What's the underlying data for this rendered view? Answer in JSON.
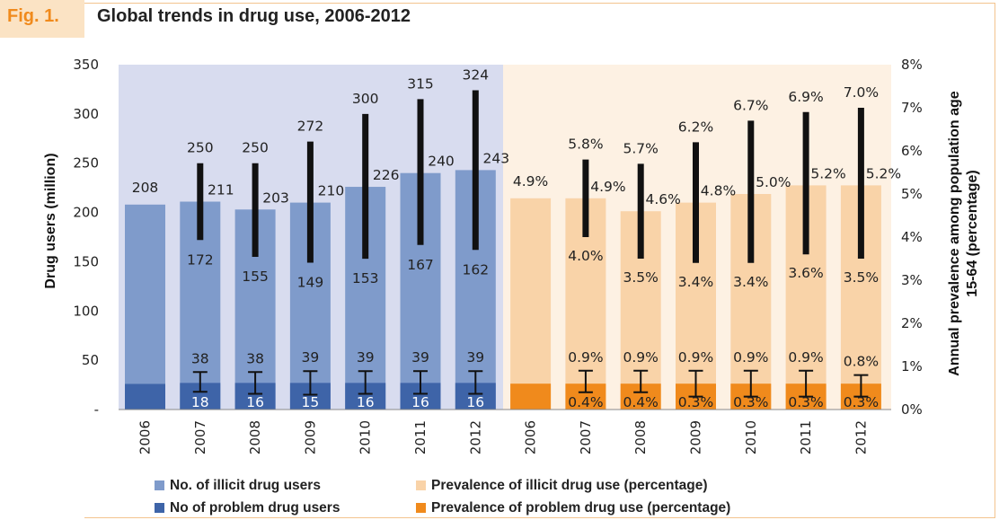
{
  "header": {
    "fig_label": "Fig. 1.",
    "title": "Global trends in drug use, 2006-2012"
  },
  "chart_data": {
    "type": "bar",
    "title": "Global trends in drug use, 2006-2012",
    "left_axis": {
      "label": "Drug users (million)",
      "ylim": [
        0,
        350
      ],
      "ticks": [
        "-",
        "50",
        "100",
        "150",
        "200",
        "250",
        "300",
        "350"
      ]
    },
    "right_axis": {
      "label_line1": "Annual prevalence among population age",
      "label_line2": "15-64 (percentage)",
      "ylim": [
        0,
        8
      ],
      "ticks": [
        "0%",
        "1%",
        "2%",
        "3%",
        "4%",
        "5%",
        "6%",
        "7%",
        "8%"
      ]
    },
    "categories": [
      "2006",
      "2007",
      "2008",
      "2009",
      "2010",
      "2011",
      "2012",
      "2006",
      "2007",
      "2008",
      "2009",
      "2010",
      "2011",
      "2012"
    ],
    "users": {
      "years": [
        "2006",
        "2007",
        "2008",
        "2009",
        "2010",
        "2011",
        "2012"
      ],
      "illicit": {
        "value": [
          208,
          211,
          203,
          210,
          226,
          240,
          243
        ],
        "low": [
          null,
          172,
          155,
          149,
          153,
          167,
          162
        ],
        "high": [
          null,
          250,
          250,
          272,
          300,
          315,
          324
        ]
      },
      "problem": {
        "value": [
          26,
          27,
          27,
          27,
          27,
          27,
          27
        ],
        "low": [
          null,
          18,
          16,
          15,
          16,
          16,
          16
        ],
        "high": [
          null,
          38,
          38,
          39,
          39,
          39,
          39
        ]
      }
    },
    "prevalence": {
      "years": [
        "2006",
        "2007",
        "2008",
        "2009",
        "2010",
        "2011",
        "2012"
      ],
      "illicit": {
        "value": [
          4.9,
          4.9,
          4.6,
          4.8,
          5.0,
          5.2,
          5.2
        ],
        "labels": [
          "4.9%",
          "4.9%",
          "4.6%",
          "4.8%",
          "5.0%",
          "5.2%",
          "5.2%"
        ],
        "low": [
          null,
          4.0,
          3.5,
          3.4,
          3.4,
          3.6,
          3.5
        ],
        "low_labels": [
          "",
          "4.0%",
          "3.5%",
          "3.4%",
          "3.4%",
          "3.6%",
          "3.5%"
        ],
        "high": [
          null,
          5.8,
          5.7,
          6.2,
          6.7,
          6.9,
          7.0
        ],
        "high_labels": [
          "",
          "5.8%",
          "5.7%",
          "6.2%",
          "6.7%",
          "6.9%",
          "7.0%"
        ]
      },
      "problem": {
        "value": [
          0.6,
          0.6,
          0.6,
          0.6,
          0.6,
          0.6,
          0.6
        ],
        "low": [
          null,
          0.4,
          0.4,
          0.3,
          0.3,
          0.3,
          0.3
        ],
        "low_labels": [
          "",
          "0.4%",
          "0.4%",
          "0.3%",
          "0.3%",
          "0.3%",
          "0.3%"
        ],
        "high": [
          null,
          0.9,
          0.9,
          0.9,
          0.9,
          0.9,
          0.8
        ],
        "high_labels": [
          "",
          "0.9%",
          "0.9%",
          "0.9%",
          "0.9%",
          "0.9%",
          "0.8%"
        ]
      }
    },
    "legend": [
      {
        "label": "No. of illicit drug users",
        "color": "#7f9bcb"
      },
      {
        "label": "No of problem drug users",
        "color": "#3e64a8"
      },
      {
        "label": "Prevalence of illicit drug use (percentage)",
        "color": "#f9d3a8"
      },
      {
        "label": "Prevalence of problem drug use (percentage)",
        "color": "#f08a1c"
      }
    ],
    "colors": {
      "panel_users": "#d8dcef",
      "panel_prevalence": "#fdf1e3",
      "error_bar": "#111111"
    }
  }
}
